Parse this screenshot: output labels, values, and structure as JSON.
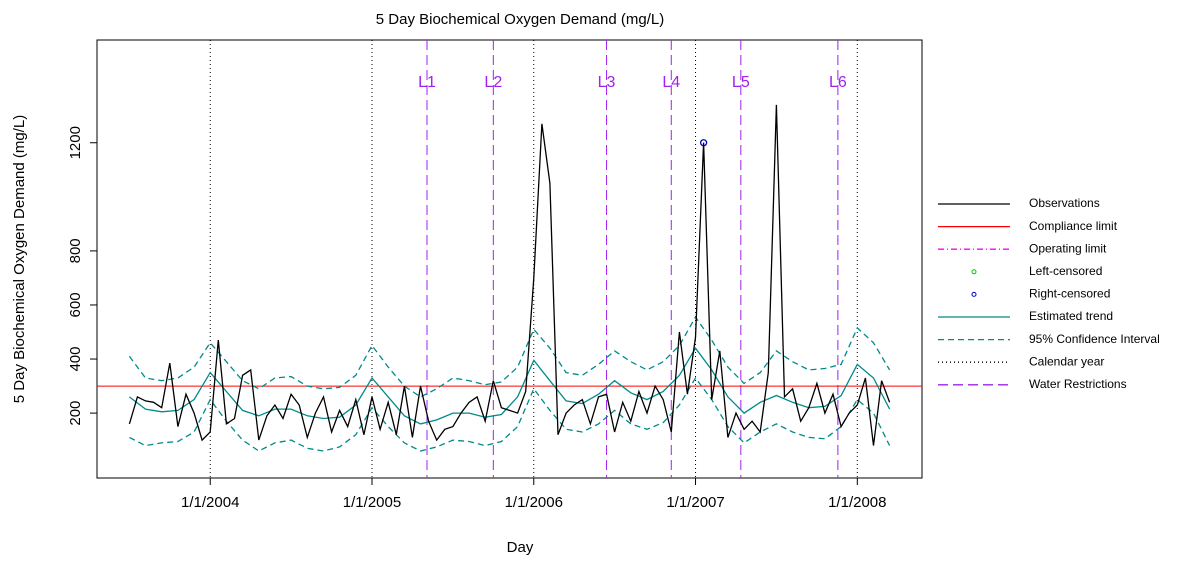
{
  "chart_data": {
    "type": "line",
    "title": "5 Day Biochemical Oxygen Demand (mg/L)",
    "xlabel": "Day",
    "ylabel": "5 Day Biochemical Oxygen Demand (mg/L)",
    "xlim": [
      2003.3,
      2008.4
    ],
    "ylim": [
      -40,
      1580
    ],
    "xticks": [
      {
        "value": 2004,
        "label": "1/1/2004"
      },
      {
        "value": 2005,
        "label": "1/1/2005"
      },
      {
        "value": 2006,
        "label": "1/1/2006"
      },
      {
        "value": 2007,
        "label": "1/1/2007"
      },
      {
        "value": 2008,
        "label": "1/1/2008"
      }
    ],
    "yticks": [
      200,
      400,
      600,
      800,
      1200
    ],
    "compliance_limit": 300,
    "water_restrictions": [
      {
        "label": "L1",
        "x": 2005.34
      },
      {
        "label": "L2",
        "x": 2005.75
      },
      {
        "label": "L3",
        "x": 2006.45
      },
      {
        "label": "L4",
        "x": 2006.85
      },
      {
        "label": "L5",
        "x": 2007.28
      },
      {
        "label": "L6",
        "x": 2007.88
      }
    ],
    "observations": {
      "x": [
        2003.5,
        2003.55,
        2003.6,
        2003.65,
        2003.7,
        2003.75,
        2003.8,
        2003.85,
        2003.9,
        2003.95,
        2004.0,
        2004.05,
        2004.1,
        2004.15,
        2004.2,
        2004.25,
        2004.3,
        2004.35,
        2004.4,
        2004.45,
        2004.5,
        2004.55,
        2004.6,
        2004.65,
        2004.7,
        2004.75,
        2004.8,
        2004.85,
        2004.9,
        2004.95,
        2005.0,
        2005.05,
        2005.1,
        2005.15,
        2005.2,
        2005.25,
        2005.3,
        2005.35,
        2005.4,
        2005.45,
        2005.5,
        2005.55,
        2005.6,
        2005.65,
        2005.7,
        2005.75,
        2005.8,
        2005.85,
        2005.9,
        2005.95,
        2006.0,
        2006.05,
        2006.1,
        2006.15,
        2006.2,
        2006.25,
        2006.3,
        2006.35,
        2006.4,
        2006.45,
        2006.5,
        2006.55,
        2006.6,
        2006.65,
        2006.7,
        2006.75,
        2006.8,
        2006.85,
        2006.9,
        2006.95,
        2007.0,
        2007.05,
        2007.1,
        2007.15,
        2007.2,
        2007.25,
        2007.3,
        2007.35,
        2007.4,
        2007.45,
        2007.5,
        2007.55,
        2007.6,
        2007.65,
        2007.7,
        2007.75,
        2007.8,
        2007.85,
        2007.9,
        2007.95,
        2008.0,
        2008.05,
        2008.1,
        2008.15,
        2008.2
      ],
      "values": [
        160,
        260,
        245,
        240,
        220,
        385,
        150,
        270,
        200,
        100,
        130,
        470,
        160,
        180,
        340,
        360,
        100,
        190,
        230,
        180,
        270,
        230,
        110,
        200,
        260,
        130,
        210,
        150,
        250,
        120,
        260,
        140,
        240,
        120,
        300,
        110,
        300,
        170,
        100,
        140,
        150,
        200,
        240,
        260,
        170,
        320,
        220,
        210,
        200,
        280,
        700,
        1270,
        1050,
        120,
        200,
        230,
        250,
        160,
        260,
        270,
        130,
        240,
        170,
        280,
        200,
        300,
        250,
        130,
        500,
        270,
        480,
        1200,
        250,
        430,
        110,
        200,
        140,
        170,
        130,
        350,
        1340,
        260,
        290,
        170,
        220,
        310,
        200,
        270,
        150,
        200,
        230,
        330,
        80,
        320,
        240
      ]
    },
    "right_censored": [
      {
        "x": 2007.05,
        "value": 1200
      }
    ],
    "trend": {
      "x": [
        2003.5,
        2003.6,
        2003.7,
        2003.8,
        2003.9,
        2004.0,
        2004.1,
        2004.2,
        2004.3,
        2004.4,
        2004.5,
        2004.6,
        2004.7,
        2004.8,
        2004.9,
        2005.0,
        2005.1,
        2005.2,
        2005.3,
        2005.4,
        2005.5,
        2005.6,
        2005.7,
        2005.8,
        2005.9,
        2006.0,
        2006.1,
        2006.2,
        2006.3,
        2006.4,
        2006.5,
        2006.6,
        2006.7,
        2006.8,
        2006.9,
        2007.0,
        2007.1,
        2007.2,
        2007.3,
        2007.4,
        2007.5,
        2007.6,
        2007.7,
        2007.8,
        2007.9,
        2008.0,
        2008.1,
        2008.2
      ],
      "values": [
        260,
        215,
        205,
        210,
        250,
        350,
        280,
        210,
        190,
        215,
        215,
        190,
        180,
        185,
        230,
        330,
        260,
        190,
        160,
        175,
        200,
        200,
        185,
        195,
        260,
        395,
        320,
        245,
        235,
        270,
        320,
        275,
        250,
        280,
        340,
        440,
        360,
        260,
        200,
        240,
        265,
        240,
        220,
        225,
        265,
        380,
        330,
        215
      ],
      "upper": [
        410,
        330,
        320,
        330,
        370,
        460,
        390,
        320,
        290,
        330,
        335,
        300,
        290,
        295,
        340,
        450,
        370,
        300,
        260,
        290,
        330,
        320,
        305,
        315,
        370,
        510,
        440,
        350,
        340,
        380,
        430,
        390,
        360,
        390,
        450,
        555,
        470,
        370,
        310,
        350,
        430,
        390,
        360,
        365,
        380,
        515,
        460,
        360
      ],
      "lower": [
        110,
        80,
        90,
        95,
        130,
        250,
        170,
        100,
        60,
        90,
        100,
        70,
        60,
        75,
        120,
        220,
        150,
        90,
        60,
        75,
        100,
        95,
        80,
        95,
        150,
        290,
        210,
        140,
        130,
        160,
        210,
        160,
        140,
        165,
        230,
        330,
        250,
        150,
        90,
        130,
        160,
        130,
        110,
        105,
        150,
        250,
        200,
        80
      ]
    },
    "legend": [
      {
        "name": "Observations",
        "color": "#000000",
        "style": "solid"
      },
      {
        "name": "Compliance limit",
        "color": "#ff0000",
        "style": "solid"
      },
      {
        "name": "Operating limit",
        "color": "#ff00ff",
        "style": "dashdot"
      },
      {
        "name": "Left-censored",
        "color": "#00cc00",
        "style": "point"
      },
      {
        "name": "Right-censored",
        "color": "#0000cc",
        "style": "point"
      },
      {
        "name": "Estimated trend",
        "color": "#008b8b",
        "style": "solid"
      },
      {
        "name": "95% Confidence Interval",
        "color": "#008b8b",
        "style": "dashed"
      },
      {
        "name": "Calendar year",
        "color": "#000000",
        "style": "dotted"
      },
      {
        "name": "Water Restrictions",
        "color": "#a020f0",
        "style": "longdash"
      }
    ]
  }
}
